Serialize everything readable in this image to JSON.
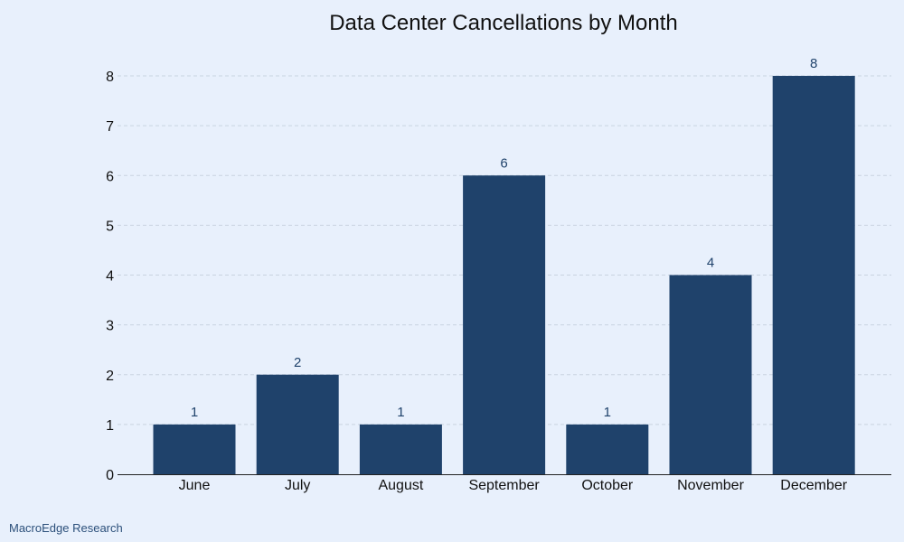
{
  "source": "MacroEdge Research",
  "colors": {
    "bar": "#1f426b",
    "data_label": "#1f426b",
    "source_text": "#2b4f7a",
    "grid": "#c9d3e0",
    "axis": "#222222"
  },
  "chart_data": {
    "type": "bar",
    "title": "Data Center Cancellations by Month",
    "xlabel": "",
    "ylabel": "",
    "categories": [
      "June",
      "July",
      "August",
      "September",
      "October",
      "November",
      "December"
    ],
    "values": [
      1,
      2,
      1,
      6,
      1,
      4,
      8
    ],
    "data_labels": [
      "1",
      "2",
      "1",
      "6",
      "1",
      "4",
      "8"
    ],
    "ylim": [
      0,
      8
    ],
    "yticks": [
      0,
      1,
      2,
      3,
      4,
      5,
      6,
      7,
      8
    ],
    "grid": true,
    "legend": "none"
  }
}
